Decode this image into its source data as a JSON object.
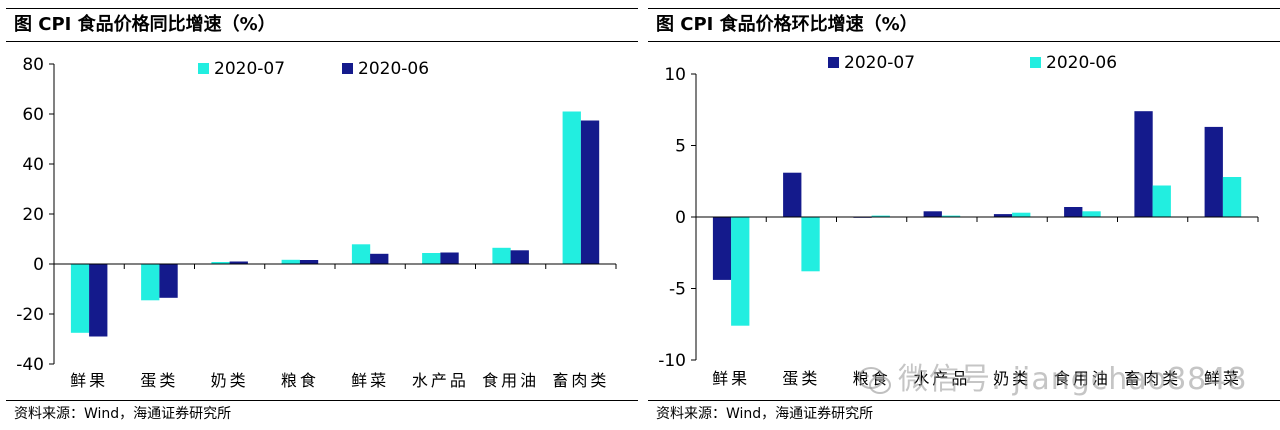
{
  "panels": [
    {
      "title": "图 CPI 食品价格同比增速（%）",
      "source": "资料来源：Wind，海通证券研究所"
    },
    {
      "title": "图 CPI 食品价格环比增速（%）",
      "source": "资料来源：Wind，海通证券研究所"
    }
  ],
  "watermark": {
    "text": "微信号: jiangchao8848",
    "icon": "wechat-icon"
  },
  "colors": {
    "cyan": "#22EEE0",
    "navy": "#141A8C"
  },
  "chart_data": [
    {
      "type": "bar",
      "categories": [
        "鲜果",
        "蛋类",
        "奶类",
        "粮食",
        "鲜菜",
        "水产品",
        "食用油",
        "畜肉类"
      ],
      "series": [
        {
          "name": "2020-07",
          "color": "#22EEE0",
          "values": [
            -27.5,
            -14.5,
            0.8,
            1.7,
            7.9,
            4.4,
            6.5,
            61.0
          ]
        },
        {
          "name": "2020-06",
          "color": "#141A8C",
          "values": [
            -29.0,
            -13.5,
            1.0,
            1.6,
            4.1,
            4.6,
            5.5,
            57.4
          ]
        }
      ],
      "ylim": [
        -40,
        80
      ],
      "yticks": [
        -40,
        -20,
        0,
        20,
        40,
        60,
        80
      ],
      "legend": "top",
      "grid": false
    },
    {
      "type": "bar",
      "categories": [
        "鲜果",
        "蛋类",
        "粮食",
        "水产品",
        "奶类",
        "食用油",
        "畜肉类",
        "鲜菜"
      ],
      "series": [
        {
          "name": "2020-07",
          "color": "#141A8C",
          "values": [
            -4.4,
            3.1,
            0.0,
            0.4,
            0.2,
            0.7,
            7.4,
            6.3
          ]
        },
        {
          "name": "2020-06",
          "color": "#22EEE0",
          "values": [
            -7.6,
            -3.8,
            0.1,
            0.1,
            0.3,
            0.4,
            2.2,
            2.8
          ]
        }
      ],
      "ylim": [
        -10,
        10
      ],
      "yticks": [
        -10,
        -5,
        0,
        5,
        10
      ],
      "legend": "top",
      "grid": false
    }
  ]
}
